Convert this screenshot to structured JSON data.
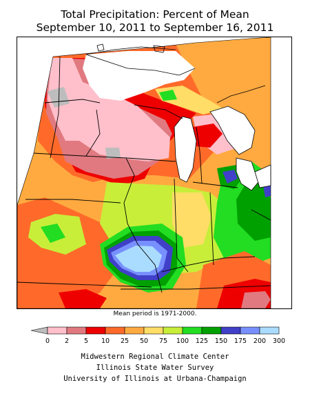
{
  "title": {
    "line1": "Total Precipitation: Percent of Mean",
    "line2": "September 10, 2011 to September 16, 2011"
  },
  "note": "Mean period is 1971-2000.",
  "legend": {
    "ticks": [
      "0",
      "2",
      "5",
      "10",
      "25",
      "50",
      "75",
      "100",
      "125",
      "150",
      "175",
      "200",
      "300"
    ],
    "colors": [
      "#bdbdbd",
      "#ffc0cb",
      "#e07a80",
      "#ee0000",
      "#ff6a2a",
      "#ffaa40",
      "#ffdd66",
      "#c8ee3a",
      "#22dd22",
      "#00a000",
      "#4040c8",
      "#7890ff",
      "#aadcff"
    ]
  },
  "credits": {
    "line1": "Midwestern Regional Climate Center",
    "line2": "Illinois State Water Survey",
    "line3": "University of Illinois at Urbana-Champaign"
  }
}
